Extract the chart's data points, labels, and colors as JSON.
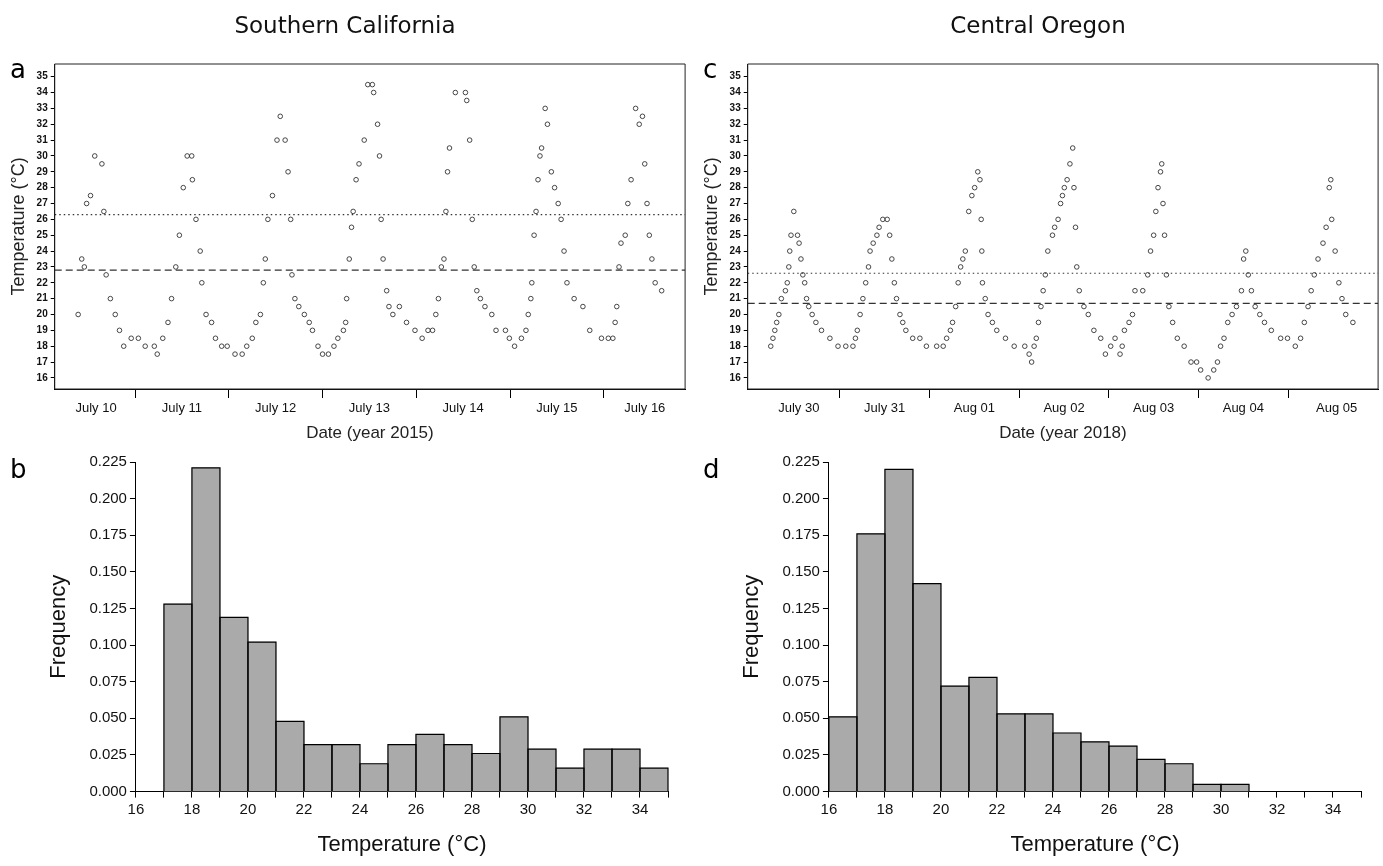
{
  "chart_data": [
    {
      "type": "scatter",
      "title": "Southern California",
      "xlabel": "Date (year 2015)",
      "ylabel": "Temperature (°C)",
      "annotations": [
        "a"
      ],
      "marker": "circle",
      "xlim": [
        "2015-07-10T03:25",
        "2015-07-16T20:50"
      ],
      "ylim": [
        15.3,
        35.8
      ],
      "yticks": [
        16,
        17,
        18,
        19,
        20,
        21,
        22,
        23,
        24,
        25,
        26,
        27,
        28,
        29,
        30,
        31,
        32,
        33,
        34,
        35
      ],
      "xticks": [
        {
          "value": "2015-07-10T14:00",
          "label": "July 10"
        },
        {
          "value": "2015-07-11T00:00",
          "label": null
        },
        {
          "value": "2015-07-11T12:00",
          "label": "July 11"
        },
        {
          "value": "2015-07-12T00:00",
          "label": null
        },
        {
          "value": "2015-07-12T12:00",
          "label": "July 12"
        },
        {
          "value": "2015-07-13T00:00",
          "label": null
        },
        {
          "value": "2015-07-13T12:00",
          "label": "July 13"
        },
        {
          "value": "2015-07-14T00:00",
          "label": null
        },
        {
          "value": "2015-07-14T12:00",
          "label": "July 14"
        },
        {
          "value": "2015-07-15T00:00",
          "label": null
        },
        {
          "value": "2015-07-15T12:00",
          "label": "July 15"
        },
        {
          "value": "2015-07-16T00:00",
          "label": null
        },
        {
          "value": "2015-07-16T10:30",
          "label": "July 16"
        }
      ],
      "ref_lines": [
        {
          "axis": "y",
          "value": 26.3,
          "line_style": "dotted"
        },
        {
          "axis": "y",
          "value": 22.8,
          "line_style": "dashed"
        }
      ],
      "x": [
        "2015-07-10T09:25",
        "2015-07-10T10:20",
        "2015-07-10T11:00",
        "2015-07-10T11:35",
        "2015-07-10T12:35",
        "2015-07-10T13:40",
        "2015-07-10T15:30",
        "2015-07-10T16:00",
        "2015-07-10T16:35",
        "2015-07-10T17:40",
        "2015-07-10T18:55",
        "2015-07-10T20:00",
        "2015-07-10T21:05",
        "2015-07-10T23:00",
        "2015-07-11T00:50",
        "2015-07-11T02:35",
        "2015-07-11T04:55",
        "2015-07-11T05:40",
        "2015-07-11T07:05",
        "2015-07-11T08:25",
        "2015-07-11T09:20",
        "2015-07-11T10:25",
        "2015-07-11T11:20",
        "2015-07-11T12:20",
        "2015-07-11T13:20",
        "2015-07-11T14:30",
        "2015-07-11T14:40",
        "2015-07-11T15:35",
        "2015-07-11T16:40",
        "2015-07-11T17:05",
        "2015-07-11T18:10",
        "2015-07-11T19:35",
        "2015-07-11T20:35",
        "2015-07-11T22:10",
        "2015-07-11T23:35",
        "2015-07-12T01:35",
        "2015-07-12T03:25",
        "2015-07-12T04:35",
        "2015-07-12T06:00",
        "2015-07-12T06:55",
        "2015-07-12T08:05",
        "2015-07-12T08:50",
        "2015-07-12T09:20",
        "2015-07-12T10:00",
        "2015-07-12T11:10",
        "2015-07-12T12:20",
        "2015-07-12T13:10",
        "2015-07-12T14:25",
        "2015-07-12T15:10",
        "2015-07-12T15:50",
        "2015-07-12T16:10",
        "2015-07-12T16:55",
        "2015-07-12T17:55",
        "2015-07-12T19:20",
        "2015-07-12T20:35",
        "2015-07-12T21:25",
        "2015-07-12T22:50",
        "2015-07-13T00:00",
        "2015-07-13T01:30",
        "2015-07-13T02:55",
        "2015-07-13T03:55",
        "2015-07-13T05:20",
        "2015-07-13T05:55",
        "2015-07-13T06:10",
        "2015-07-13T06:50",
        "2015-07-13T07:25",
        "2015-07-13T07:50",
        "2015-07-13T08:35",
        "2015-07-13T09:20",
        "2015-07-13T10:40",
        "2015-07-13T11:35",
        "2015-07-13T12:45",
        "2015-07-13T13:05",
        "2015-07-13T14:05",
        "2015-07-13T14:35",
        "2015-07-13T15:00",
        "2015-07-13T15:30",
        "2015-07-13T16:25",
        "2015-07-13T17:00",
        "2015-07-13T18:00",
        "2015-07-13T19:40",
        "2015-07-13T21:30",
        "2015-07-13T23:40",
        "2015-07-14T01:30",
        "2015-07-14T03:00",
        "2015-07-14T04:10",
        "2015-07-14T05:00",
        "2015-07-14T05:40",
        "2015-07-14T06:25",
        "2015-07-14T07:05",
        "2015-07-14T07:35",
        "2015-07-14T08:00",
        "2015-07-14T08:30",
        "2015-07-14T10:00",
        "2015-07-14T12:35",
        "2015-07-14T12:55",
        "2015-07-14T13:40",
        "2015-07-14T14:20",
        "2015-07-14T14:50",
        "2015-07-14T15:30",
        "2015-07-14T16:25",
        "2015-07-14T17:35",
        "2015-07-14T19:20",
        "2015-07-14T20:25",
        "2015-07-14T22:50",
        "2015-07-14T23:50",
        "2015-07-15T01:10",
        "2015-07-15T02:55",
        "2015-07-15T04:05",
        "2015-07-15T04:40",
        "2015-07-15T05:20",
        "2015-07-15T05:35",
        "2015-07-15T06:10",
        "2015-07-15T06:40",
        "2015-07-15T07:10",
        "2015-07-15T07:40",
        "2015-07-15T08:05",
        "2015-07-15T09:00",
        "2015-07-15T09:35",
        "2015-07-15T10:35",
        "2015-07-15T11:25",
        "2015-07-15T12:20",
        "2015-07-15T13:05",
        "2015-07-15T13:50",
        "2015-07-15T14:35",
        "2015-07-15T16:25",
        "2015-07-15T18:40",
        "2015-07-15T20:25",
        "2015-07-15T23:25",
        "2015-07-16T01:10",
        "2015-07-16T02:20",
        "2015-07-16T02:55",
        "2015-07-16T03:20",
        "2015-07-16T03:55",
        "2015-07-16T04:25",
        "2015-07-16T05:30",
        "2015-07-16T06:10",
        "2015-07-16T07:00",
        "2015-07-16T08:10",
        "2015-07-16T09:05",
        "2015-07-16T09:55",
        "2015-07-16T10:30",
        "2015-07-16T11:05",
        "2015-07-16T11:40",
        "2015-07-16T12:20",
        "2015-07-16T13:10",
        "2015-07-16T14:50"
      ],
      "series": [
        {
          "color": "#333333",
          "values": [
            20,
            23.5,
            23,
            27,
            27.5,
            30,
            29.5,
            26.5,
            22.5,
            21,
            20,
            19,
            18,
            18.5,
            18.5,
            18,
            18,
            17.5,
            18.5,
            19.5,
            21,
            23,
            25,
            28,
            30,
            30,
            28.5,
            26,
            24,
            22,
            20,
            19.5,
            18.5,
            18,
            18,
            17.5,
            17.5,
            18,
            18.5,
            19.5,
            20,
            22,
            23.5,
            26,
            27.5,
            31,
            32.5,
            31,
            29,
            26,
            22.5,
            21,
            20.5,
            20,
            19.5,
            19,
            18,
            17.5,
            17.5,
            18,
            18.5,
            19,
            19.5,
            21,
            23.5,
            25.5,
            26.5,
            28.5,
            29.5,
            31,
            34.5,
            34.5,
            34,
            32,
            30,
            26,
            23.5,
            21.5,
            20.5,
            20,
            20.5,
            19.5,
            19,
            18.5,
            19,
            19,
            20,
            21,
            23,
            23.5,
            26.5,
            29,
            30.5,
            34,
            34,
            33.5,
            31,
            26,
            23,
            21.5,
            21,
            20.5,
            20,
            19,
            19,
            18.5,
            18,
            18.5,
            19,
            20,
            21,
            22,
            25,
            26.5,
            28.5,
            30,
            30.5,
            33,
            32,
            29,
            28,
            27,
            26,
            24,
            22,
            21,
            20.5,
            19,
            18.5,
            18.5,
            18.5,
            19.5,
            20.5,
            23,
            24.5,
            25,
            27,
            28.5,
            33,
            32,
            32.5,
            29.5,
            27,
            25,
            23.5,
            22,
            21.5
          ]
        }
      ]
    },
    {
      "type": "scatter",
      "title": "Central Oregon",
      "xlabel": "Date (year 2018)",
      "ylabel": "Temperature (°C)",
      "annotations": [
        "c"
      ],
      "marker": "circle",
      "xlim": [
        "2018-07-29T23:20",
        "2018-08-06T00:05"
      ],
      "ylim": [
        15.3,
        35.8
      ],
      "yticks": [
        16,
        17,
        18,
        19,
        20,
        21,
        22,
        23,
        24,
        25,
        26,
        27,
        28,
        29,
        30,
        31,
        32,
        33,
        34,
        35
      ],
      "xticks": [
        {
          "value": "2018-07-30T13:00",
          "label": "July 30"
        },
        {
          "value": "2018-07-31T00:00",
          "label": null
        },
        {
          "value": "2018-07-31T12:00",
          "label": "July 31"
        },
        {
          "value": "2018-08-01T00:00",
          "label": null
        },
        {
          "value": "2018-08-01T12:00",
          "label": "Aug 01"
        },
        {
          "value": "2018-08-02T00:00",
          "label": null
        },
        {
          "value": "2018-08-02T12:00",
          "label": "Aug 02"
        },
        {
          "value": "2018-08-03T00:00",
          "label": null
        },
        {
          "value": "2018-08-03T12:00",
          "label": "Aug 03"
        },
        {
          "value": "2018-08-04T00:00",
          "label": null
        },
        {
          "value": "2018-08-04T12:00",
          "label": "Aug 04"
        },
        {
          "value": "2018-08-05T00:00",
          "label": null
        },
        {
          "value": "2018-08-05T13:00",
          "label": "Aug 05"
        }
      ],
      "ref_lines": [
        {
          "axis": "y",
          "value": 22.6,
          "line_style": "dotted"
        },
        {
          "axis": "y",
          "value": 20.7,
          "line_style": "dashed"
        }
      ],
      "x": [
        "2018-07-30T05:30",
        "2018-07-30T06:05",
        "2018-07-30T06:35",
        "2018-07-30T07:05",
        "2018-07-30T07:40",
        "2018-07-30T08:20",
        "2018-07-30T09:25",
        "2018-07-30T09:55",
        "2018-07-30T10:20",
        "2018-07-30T10:35",
        "2018-07-30T10:55",
        "2018-07-30T11:40",
        "2018-07-30T12:40",
        "2018-07-30T13:05",
        "2018-07-30T13:35",
        "2018-07-30T14:05",
        "2018-07-30T14:35",
        "2018-07-30T15:05",
        "2018-07-30T15:40",
        "2018-07-30T16:35",
        "2018-07-30T17:35",
        "2018-07-30T19:05",
        "2018-07-30T21:20",
        "2018-07-30T23:30",
        "2018-07-31T01:35",
        "2018-07-31T03:30",
        "2018-07-31T04:10",
        "2018-07-31T04:40",
        "2018-07-31T05:25",
        "2018-07-31T06:10",
        "2018-07-31T06:55",
        "2018-07-31T07:40",
        "2018-07-31T08:05",
        "2018-07-31T08:55",
        "2018-07-31T09:55",
        "2018-07-31T10:30",
        "2018-07-31T11:30",
        "2018-07-31T12:40",
        "2018-07-31T13:20",
        "2018-07-31T13:55",
        "2018-07-31T14:35",
        "2018-07-31T15:10",
        "2018-07-31T16:05",
        "2018-07-31T16:50",
        "2018-07-31T17:40",
        "2018-07-31T19:30",
        "2018-07-31T21:25",
        "2018-07-31T23:10",
        "2018-08-01T01:55",
        "2018-08-01T03:40",
        "2018-08-01T04:35",
        "2018-08-01T05:35",
        "2018-08-01T06:10",
        "2018-08-01T07:00",
        "2018-08-01T07:40",
        "2018-08-01T08:20",
        "2018-08-01T08:55",
        "2018-08-01T09:35",
        "2018-08-01T10:30",
        "2018-08-01T11:20",
        "2018-08-01T12:05",
        "2018-08-01T12:55",
        "2018-08-01T13:30",
        "2018-08-01T13:50",
        "2018-08-01T14:00",
        "2018-08-01T14:10",
        "2018-08-01T14:55",
        "2018-08-01T15:40",
        "2018-08-01T16:50",
        "2018-08-01T18:00",
        "2018-08-01T20:20",
        "2018-08-01T22:40",
        "2018-08-02T01:30",
        "2018-08-02T02:40",
        "2018-08-02T03:20",
        "2018-08-02T04:00",
        "2018-08-02T04:35",
        "2018-08-02T05:10",
        "2018-08-02T05:50",
        "2018-08-02T06:25",
        "2018-08-02T07:00",
        "2018-08-02T07:40",
        "2018-08-02T08:55",
        "2018-08-02T09:30",
        "2018-08-02T10:25",
        "2018-08-02T11:05",
        "2018-08-02T11:35",
        "2018-08-02T12:05",
        "2018-08-02T12:50",
        "2018-08-02T13:35",
        "2018-08-02T14:20",
        "2018-08-02T14:40",
        "2018-08-02T15:05",
        "2018-08-02T15:25",
        "2018-08-02T16:05",
        "2018-08-02T17:20",
        "2018-08-02T18:30",
        "2018-08-02T20:00",
        "2018-08-02T21:50",
        "2018-08-02T23:05",
        "2018-08-03T00:30",
        "2018-08-03T01:40",
        "2018-08-03T03:00",
        "2018-08-03T03:35",
        "2018-08-03T04:10",
        "2018-08-03T05:25",
        "2018-08-03T06:20",
        "2018-08-03T07:00",
        "2018-08-03T09:05",
        "2018-08-03T10:25",
        "2018-08-03T11:10",
        "2018-08-03T12:00",
        "2018-08-03T12:35",
        "2018-08-03T13:10",
        "2018-08-03T13:50",
        "2018-08-03T14:10",
        "2018-08-03T14:30",
        "2018-08-03T14:55",
        "2018-08-03T15:25",
        "2018-08-03T16:05",
        "2018-08-03T17:05",
        "2018-08-03T18:20",
        "2018-08-03T20:10",
        "2018-08-03T22:00",
        "2018-08-03T23:30",
        "2018-08-04T00:35",
        "2018-08-04T02:35",
        "2018-08-04T04:05",
        "2018-08-04T05:05",
        "2018-08-04T05:55",
        "2018-08-04T06:50",
        "2018-08-04T07:50",
        "2018-08-04T09:00",
        "2018-08-04T10:10",
        "2018-08-04T11:30",
        "2018-08-04T12:05",
        "2018-08-04T12:40",
        "2018-08-04T13:20",
        "2018-08-04T14:10",
        "2018-08-04T15:10",
        "2018-08-04T16:25",
        "2018-08-04T17:40",
        "2018-08-04T19:30",
        "2018-08-04T22:00",
        "2018-08-04T23:50",
        "2018-08-05T01:55",
        "2018-08-05T03:20",
        "2018-08-05T04:20",
        "2018-08-05T05:20",
        "2018-08-05T06:10",
        "2018-08-05T07:00",
        "2018-08-05T08:00",
        "2018-08-05T09:20",
        "2018-08-05T10:10",
        "2018-08-05T11:00",
        "2018-08-05T11:25",
        "2018-08-05T11:40",
        "2018-08-05T12:35",
        "2018-08-05T13:35",
        "2018-08-05T14:25",
        "2018-08-05T15:25",
        "2018-08-05T17:20"
      ],
      "series": [
        {
          "color": "#333333",
          "values": [
            18,
            18.5,
            19,
            19.5,
            20,
            21,
            21.5,
            22,
            23,
            24,
            25,
            26.5,
            25,
            24.5,
            23.5,
            22.5,
            22,
            21,
            20.5,
            20,
            19.5,
            19,
            18.5,
            18,
            18,
            18,
            18.5,
            19,
            20,
            21,
            22,
            23,
            24,
            24.5,
            25,
            25.5,
            26,
            26,
            25,
            23.5,
            22,
            21,
            20,
            19.5,
            19,
            18.5,
            18.5,
            18,
            18,
            18,
            18.5,
            19,
            19.5,
            20.5,
            22,
            23,
            23.5,
            24,
            26.5,
            27.5,
            28,
            29,
            28.5,
            26,
            24,
            22,
            21,
            20,
            19.5,
            19,
            18.5,
            18,
            18,
            17.5,
            17,
            18,
            18.5,
            19.5,
            20.5,
            21.5,
            22.5,
            24,
            25,
            25.5,
            26,
            27,
            27.5,
            28,
            28.5,
            29.5,
            30.5,
            28,
            25.5,
            23,
            21.5,
            20.5,
            20,
            19,
            18.5,
            17.5,
            18,
            18.5,
            17.5,
            18,
            19,
            19.5,
            20,
            21.5,
            21.5,
            22.5,
            24,
            25,
            26.5,
            28,
            29,
            29.5,
            27,
            25,
            22.5,
            20.5,
            19.5,
            18.5,
            18,
            17,
            17,
            16.5,
            16,
            16.5,
            17,
            18,
            18.5,
            19.5,
            20,
            20.5,
            21.5,
            23.5,
            24,
            22.5,
            21.5,
            20.5,
            20,
            19.5,
            19,
            18.5,
            18.5,
            18,
            18.5,
            19.5,
            20.5,
            21.5,
            22.5,
            23.5,
            24.5,
            25.5,
            28,
            28.5,
            26,
            24,
            22,
            21,
            20,
            19.5
          ]
        }
      ]
    },
    {
      "type": "histogram",
      "xlabel": "Temperature (°C)",
      "ylabel": "Frequency",
      "annotations": [
        "b"
      ],
      "color": "#aaaaaa",
      "bins": [
        17,
        18,
        19,
        20,
        21,
        22,
        23,
        24,
        25,
        26,
        27,
        28,
        29,
        30,
        31,
        32,
        33,
        34,
        35
      ],
      "values": [
        0.128,
        0.221,
        0.119,
        0.102,
        0.048,
        0.032,
        0.032,
        0.019,
        0.032,
        0.039,
        0.032,
        0.026,
        0.051,
        0.029,
        0.016,
        0.029,
        0.029,
        0.016
      ],
      "xlim": [
        16,
        35
      ],
      "ylim": [
        0,
        0.225
      ],
      "xticks": [
        16,
        {
          "value": 17,
          "label": null
        },
        18,
        {
          "value": 19,
          "label": null
        },
        20,
        {
          "value": 21,
          "label": null
        },
        22,
        {
          "value": 23,
          "label": null
        },
        24,
        {
          "value": 25,
          "label": null
        },
        26,
        {
          "value": 27,
          "label": null
        },
        28,
        {
          "value": 29,
          "label": null
        },
        30,
        {
          "value": 31,
          "label": null
        },
        32,
        {
          "value": 33,
          "label": null
        },
        34,
        {
          "value": 35,
          "label": null
        }
      ],
      "yticks": [
        {
          "value": 0,
          "label": "0.000"
        },
        {
          "value": 0.025,
          "label": "0.025"
        },
        {
          "value": 0.05,
          "label": "0.050"
        },
        {
          "value": 0.075,
          "label": "0.075"
        },
        {
          "value": 0.1,
          "label": "0.100"
        },
        {
          "value": 0.125,
          "label": "0.125"
        },
        {
          "value": 0.15,
          "label": "0.150"
        },
        {
          "value": 0.175,
          "label": "0.175"
        },
        {
          "value": 0.2,
          "label": "0.200"
        },
        {
          "value": 0.225,
          "label": "0.225"
        }
      ]
    },
    {
      "type": "histogram",
      "xlabel": "Temperature (°C)",
      "ylabel": "Frequency",
      "annotations": [
        "d"
      ],
      "color": "#aaaaaa",
      "bins": [
        16,
        17,
        18,
        19,
        20,
        21,
        22,
        23,
        24,
        25,
        26,
        27,
        28,
        29,
        30,
        31
      ],
      "values": [
        0.051,
        0.176,
        0.22,
        0.142,
        0.072,
        0.078,
        0.053,
        0.053,
        0.04,
        0.034,
        0.031,
        0.022,
        0.019,
        0.005,
        0.005
      ],
      "xlim": [
        16,
        35
      ],
      "ylim": [
        0,
        0.225
      ],
      "xticks": [
        16,
        {
          "value": 17,
          "label": null
        },
        18,
        {
          "value": 19,
          "label": null
        },
        20,
        {
          "value": 21,
          "label": null
        },
        22,
        {
          "value": 23,
          "label": null
        },
        24,
        {
          "value": 25,
          "label": null
        },
        26,
        {
          "value": 27,
          "label": null
        },
        28,
        {
          "value": 29,
          "label": null
        },
        30,
        {
          "value": 31,
          "label": null
        },
        32,
        {
          "value": 33,
          "label": null
        },
        34,
        {
          "value": 35,
          "label": null
        }
      ],
      "yticks": [
        {
          "value": 0,
          "label": "0.000"
        },
        {
          "value": 0.025,
          "label": "0.025"
        },
        {
          "value": 0.05,
          "label": "0.050"
        },
        {
          "value": 0.075,
          "label": "0.075"
        },
        {
          "value": 0.1,
          "label": "0.100"
        },
        {
          "value": 0.125,
          "label": "0.125"
        },
        {
          "value": 0.15,
          "label": "0.150"
        },
        {
          "value": 0.175,
          "label": "0.175"
        },
        {
          "value": 0.2,
          "label": "0.200"
        },
        {
          "value": 0.225,
          "label": "0.225"
        }
      ]
    }
  ]
}
